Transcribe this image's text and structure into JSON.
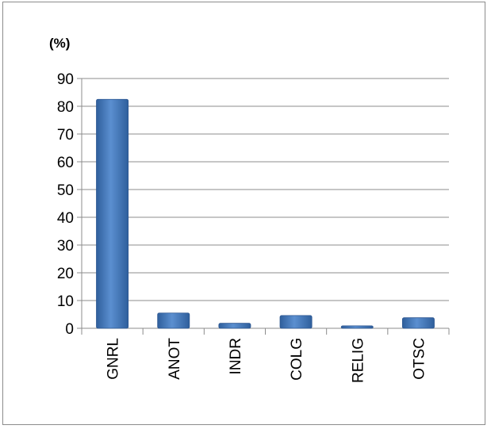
{
  "chart_data": {
    "type": "bar",
    "unit_label": "(%)",
    "categories": [
      "GNRL",
      "ANOT",
      "INDR",
      "COLG",
      "RELIG",
      "OTSC"
    ],
    "values": [
      82.5,
      5.5,
      1.8,
      4.6,
      0.9,
      3.8
    ],
    "ylim": [
      0,
      90
    ],
    "yticks": [
      0,
      10,
      20,
      30,
      40,
      50,
      60,
      70,
      80,
      90
    ],
    "grid": true,
    "legend": "none",
    "bar_color": "#4a7fc1"
  }
}
